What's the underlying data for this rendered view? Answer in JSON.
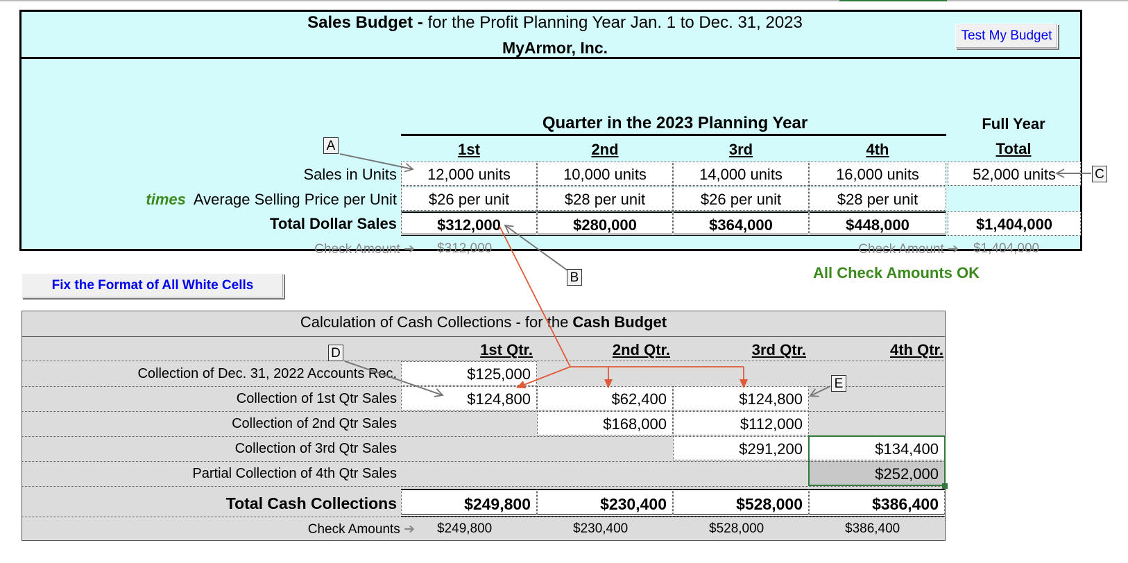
{
  "title": {
    "bold": "Sales Budget -",
    "rest": " for the Profit Planning Year Jan. 1 to Dec. 31, 2023",
    "company": "MyArmor, Inc."
  },
  "buttons": {
    "test_budget": "Test My Budget",
    "fix_format": "Fix the Format of All White Cells"
  },
  "sales": {
    "quarter_header": "Quarter in the 2023 Planning Year",
    "full_year_top": "Full Year",
    "full_year_bottom": "Total",
    "columns": [
      "1st",
      "2nd",
      "3rd",
      "4th"
    ],
    "row_units_label": "Sales in Units",
    "units": [
      "12,000 units",
      "10,000 units",
      "14,000 units",
      "16,000 units",
      "52,000 units"
    ],
    "times_word": "times",
    "row_price_label": "Average Selling Price per Unit",
    "prices": [
      "$26 per unit",
      "$28 per unit",
      "$26 per unit",
      "$28 per unit"
    ],
    "row_total_label": "Total Dollar Sales",
    "totals": [
      "$312,000",
      "$280,000",
      "$364,000",
      "$448,000",
      "$1,404,000"
    ],
    "check_label": "Check Amount",
    "check_left": "$312,000",
    "check_right": "$1,404,000",
    "status": "All Check Amounts OK"
  },
  "markers": [
    "A",
    "B",
    "C",
    "D",
    "E"
  ],
  "cash": {
    "title_plain": "Calculation of Cash Collections - for the ",
    "title_bold": "Cash Budget",
    "columns": [
      "1st Qtr.",
      "2nd Qtr.",
      "3rd Qtr.",
      "4th Qtr."
    ],
    "rows": [
      {
        "label": "Collection of  Dec. 31, 2022 Accounts Rec.",
        "values": [
          "$125,000",
          "",
          "",
          ""
        ]
      },
      {
        "label": "Collection of 1st Qtr Sales",
        "values": [
          "$124,800",
          "$62,400",
          "$124,800",
          ""
        ]
      },
      {
        "label": "Collection of 2nd Qtr Sales",
        "values": [
          "",
          "$168,000",
          "$112,000",
          ""
        ]
      },
      {
        "label": "Collection of 3rd Qtr Sales",
        "values": [
          "",
          "",
          "$291,200",
          "$134,400"
        ]
      },
      {
        "label": "Partial Collection of 4th Qtr Sales",
        "values": [
          "",
          "",
          "",
          "$252,000"
        ]
      }
    ],
    "total_label": "Total Cash Collections",
    "totals": [
      "$249,800",
      "$230,400",
      "$528,000",
      "$386,400"
    ],
    "check_label": "Check Amounts",
    "checks": [
      "$249,800",
      "$230,400",
      "$528,000",
      "$386,400"
    ]
  },
  "colors": {
    "panel_bg": "#d4fbfc",
    "status_green": "#3c8a1e",
    "arrow_red": "#e05a3a",
    "selection_green": "#2f7a3a",
    "link_blue": "#0000ee"
  }
}
